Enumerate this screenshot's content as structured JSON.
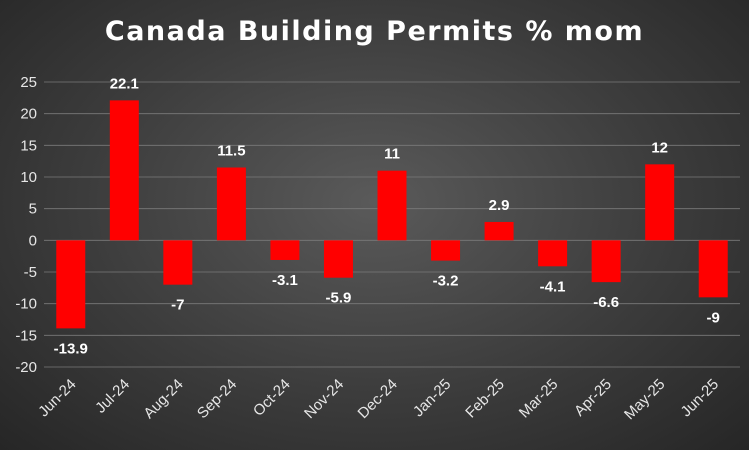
{
  "chart_data": {
    "type": "bar",
    "title": "Canada Building Permits % mom",
    "xlabel": "",
    "ylabel": "",
    "categories": [
      "Jun-24",
      "Jul-24",
      "Aug-24",
      "Sep-24",
      "Oct-24",
      "Nov-24",
      "Dec-24",
      "Jan-25",
      "Feb-25",
      "Mar-25",
      "Apr-25",
      "May-25",
      "Jun-25"
    ],
    "values": [
      -13.9,
      22.1,
      -7,
      11.5,
      -3.1,
      -5.9,
      11,
      -3.2,
      2.9,
      -4.1,
      -6.6,
      12,
      -9
    ],
    "data_labels": [
      "-13.9",
      "22.1",
      "-7",
      "11.5",
      "-3.1",
      "-5.9",
      "11",
      "-3.2",
      "2.9",
      "-4.1",
      "-6.6",
      "12",
      "-9"
    ],
    "ylim": [
      -20,
      25
    ],
    "yticks": [
      25,
      20,
      15,
      10,
      5,
      0,
      -5,
      -10,
      -15,
      -20
    ],
    "grid": true,
    "legend": "none",
    "bar_color": "#ff0000"
  }
}
